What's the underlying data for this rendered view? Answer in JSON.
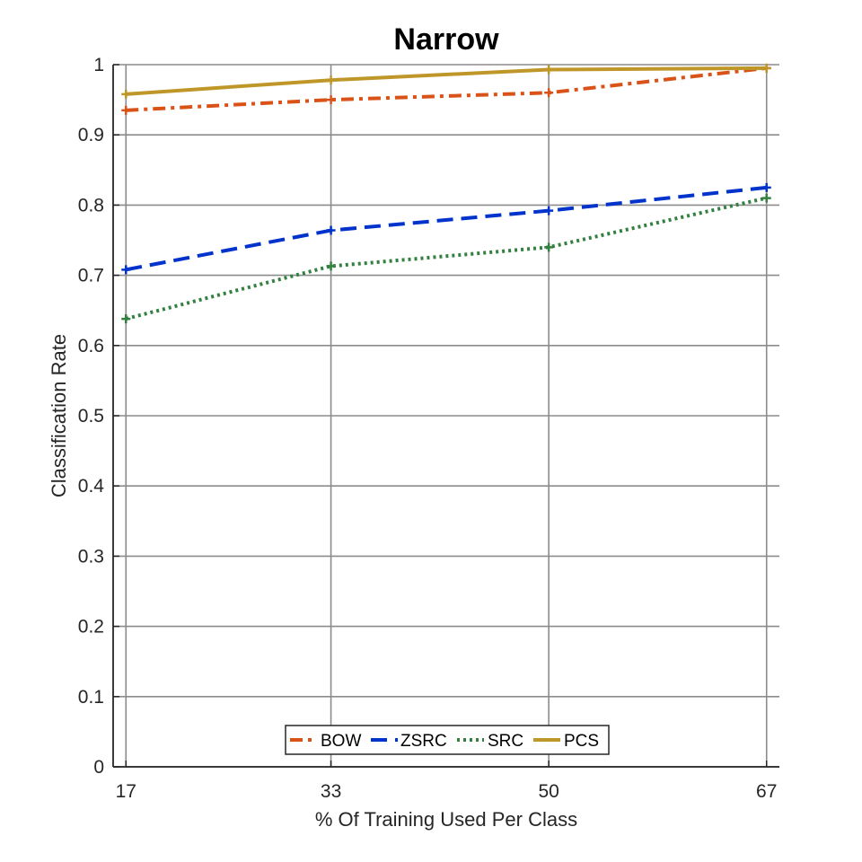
{
  "chart_data": {
    "type": "line",
    "title": "Narrow",
    "xlabel": "% Of Training Used Per Class",
    "ylabel": "Classification Rate",
    "x": [
      17,
      33,
      50,
      67
    ],
    "x_tick_labels": [
      "17",
      "33",
      "50",
      "67"
    ],
    "xlim": [
      16,
      68
    ],
    "ylim": [
      0,
      1
    ],
    "y_ticks": [
      0,
      0.1,
      0.2,
      0.3,
      0.4,
      0.5,
      0.6,
      0.7,
      0.8,
      0.9,
      1
    ],
    "y_tick_labels": [
      "0",
      "0.1",
      "0.2",
      "0.3",
      "0.4",
      "0.5",
      "0.6",
      "0.7",
      "0.8",
      "0.9",
      "1"
    ],
    "grid": true,
    "legend_position": "bottom-center",
    "series": [
      {
        "name": "BOW",
        "values": [
          0.935,
          0.95,
          0.96,
          0.995
        ],
        "color": "#D95319",
        "dash": "dashdot"
      },
      {
        "name": "ZSRC",
        "values": [
          0.708,
          0.764,
          0.792,
          0.825
        ],
        "color": "#0033CC",
        "dash": "dashed"
      },
      {
        "name": "SRC",
        "values": [
          0.638,
          0.713,
          0.74,
          0.81
        ],
        "color": "#338040",
        "dash": "dotted"
      },
      {
        "name": "PCS",
        "values": [
          0.958,
          0.978,
          0.993,
          0.995
        ],
        "color": "#BF9628",
        "dash": "solid"
      }
    ]
  }
}
